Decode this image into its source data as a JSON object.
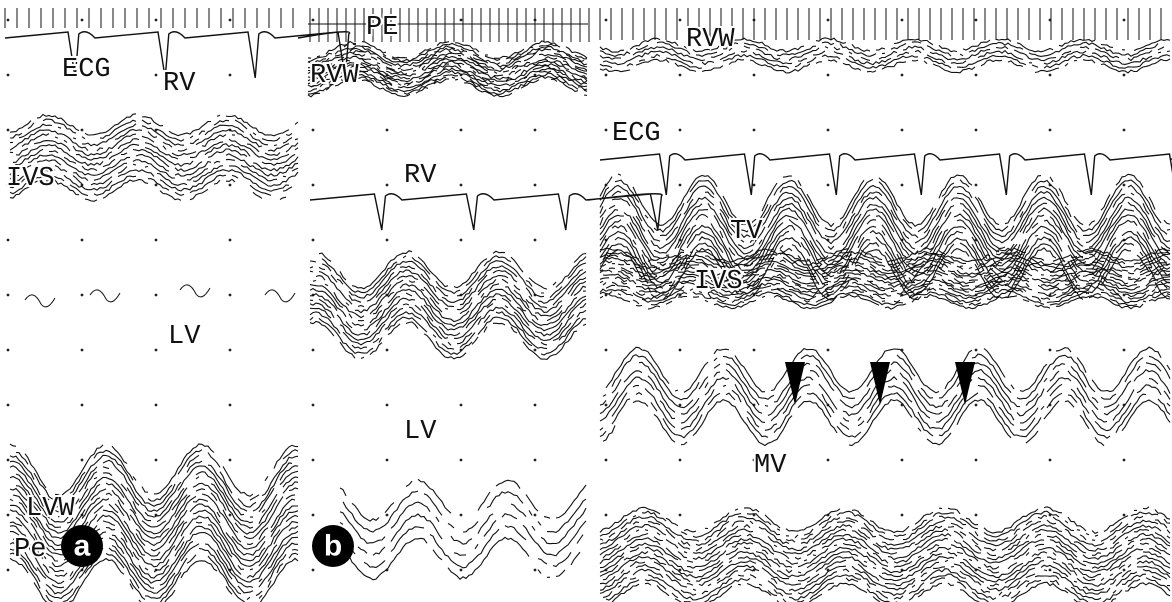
{
  "panels": [
    {
      "badge": "a",
      "labels": [
        "ECG",
        "RV",
        "IVS",
        "LV",
        "LVW",
        "Pe"
      ]
    },
    {
      "badge": "b",
      "labels": [
        "PE",
        "RVW",
        "RV",
        "LV"
      ]
    },
    {
      "labels": [
        "RVW",
        "ECG",
        "TV",
        "IVS",
        "MV"
      ]
    }
  ]
}
